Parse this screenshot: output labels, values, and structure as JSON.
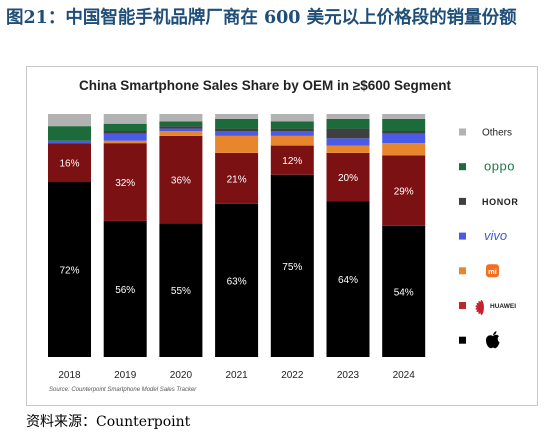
{
  "figure_title": "图21：中国智能手机品牌厂商在 600 美元以上价格段的销量份额",
  "source_line": "资料来源：Counterpoint",
  "chart_data": {
    "type": "bar",
    "stacked": true,
    "normalized": true,
    "title": "China Smartphone Sales Share by OEM in ≥$600 Segment",
    "xlabel": "",
    "ylabel": "",
    "ylim": [
      0,
      100
    ],
    "categories": [
      "2018",
      "2019",
      "2020",
      "2021",
      "2022",
      "2023",
      "2024"
    ],
    "series": [
      {
        "name": "Apple",
        "color": "#000000",
        "values": [
          72,
          56,
          55,
          63,
          75,
          64,
          54
        ]
      },
      {
        "name": "HUAWEI",
        "color": "#7b1113",
        "values": [
          16,
          32,
          36,
          21,
          12,
          20,
          29
        ]
      },
      {
        "name": "Xiaomi",
        "color": "#e8862e",
        "values": [
          0,
          1,
          2,
          7,
          4,
          3,
          5
        ]
      },
      {
        "name": "vivo",
        "color": "#4b5be6",
        "values": [
          1,
          3,
          1,
          2,
          2,
          3,
          4
        ]
      },
      {
        "name": "HONOR",
        "color": "#3f3f3f",
        "values": [
          0,
          1,
          1,
          1,
          1,
          4,
          1
        ]
      },
      {
        "name": "OPPO",
        "color": "#1d6b3a",
        "values": [
          6,
          3,
          2,
          4,
          3,
          4,
          5
        ]
      },
      {
        "name": "Others",
        "color": "#b2b2b2",
        "values": [
          5,
          4,
          3,
          2,
          3,
          2,
          2
        ]
      }
    ],
    "data_labels": [
      {
        "series": "Apple",
        "labels": [
          "72%",
          "56%",
          "55%",
          "63%",
          "75%",
          "64%",
          "54%"
        ]
      },
      {
        "series": "HUAWEI",
        "labels": [
          "16%",
          "32%",
          "36%",
          "21%",
          "12%",
          "20%",
          "29%"
        ]
      }
    ],
    "legend": {
      "placement": "right",
      "order_top_to_bottom": [
        "Others",
        "OPPO",
        "HONOR",
        "vivo",
        "Xiaomi",
        "HUAWEI",
        "Apple"
      ],
      "entries": [
        {
          "key": "Others",
          "text": "Others",
          "marker_color": "#b2b2b2",
          "logo": ""
        },
        {
          "key": "OPPO",
          "text": "oppo",
          "marker_color": "#1d6b3a",
          "logo": "oppo-wordmark",
          "text_color": "#1d7a45"
        },
        {
          "key": "HONOR",
          "text": "HONOR",
          "marker_color": "#3f3f3f",
          "logo": "honor-wordmark",
          "text_color": "#222222"
        },
        {
          "key": "vivo",
          "text": "vivo",
          "marker_color": "#4b5be6",
          "logo": "vivo-wordmark",
          "text_color": "#3b5bdb"
        },
        {
          "key": "Xiaomi",
          "text": "mi",
          "marker_color": "#e8862e",
          "logo": "xiaomi-logo",
          "text_color": "#ffffff"
        },
        {
          "key": "HUAWEI",
          "text": "HUAWEI",
          "marker_color": "#b52b2b",
          "logo": "huawei-logo",
          "text_color": "#222222"
        },
        {
          "key": "Apple",
          "text": "",
          "marker_color": "#000000",
          "logo": "apple-logo"
        }
      ]
    },
    "footnote": "Source: Counterpoint Smartphone Model Sales Tracker",
    "watermark": "Counterpoint"
  }
}
